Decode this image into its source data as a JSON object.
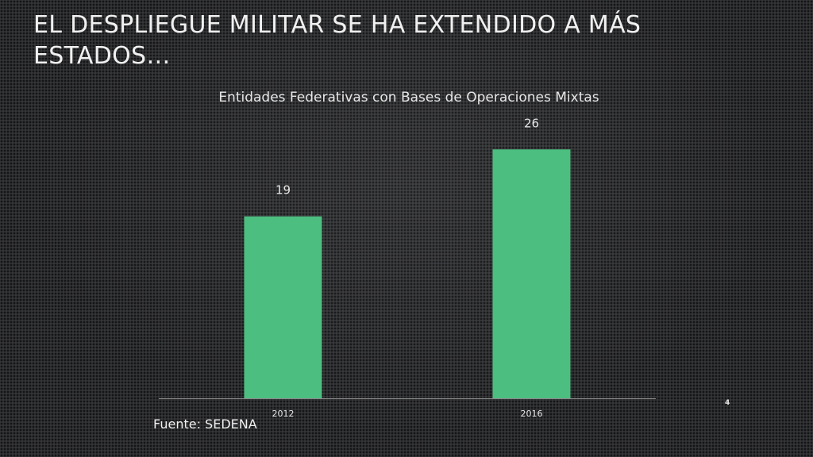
{
  "slide": {
    "title": "EL DESPLIEGUE MILITAR SE HA EXTENDIDO A MÁS ESTADOS…",
    "source": "Fuente: SEDENA",
    "page_number": "4"
  },
  "colors": {
    "bar": "#4cbe80",
    "axis": "#8a8a8a",
    "label": "#e6e6e6"
  },
  "chart_data": {
    "type": "bar",
    "title": "Entidades Federativas con Bases de Operaciones Mixtas",
    "categories": [
      "2012",
      "2016"
    ],
    "values": [
      19,
      26
    ],
    "data_labels": [
      "19",
      "26"
    ],
    "xlabel": "",
    "ylabel": "",
    "ylim": [
      0,
      30
    ],
    "grid": false,
    "legend": "none"
  }
}
